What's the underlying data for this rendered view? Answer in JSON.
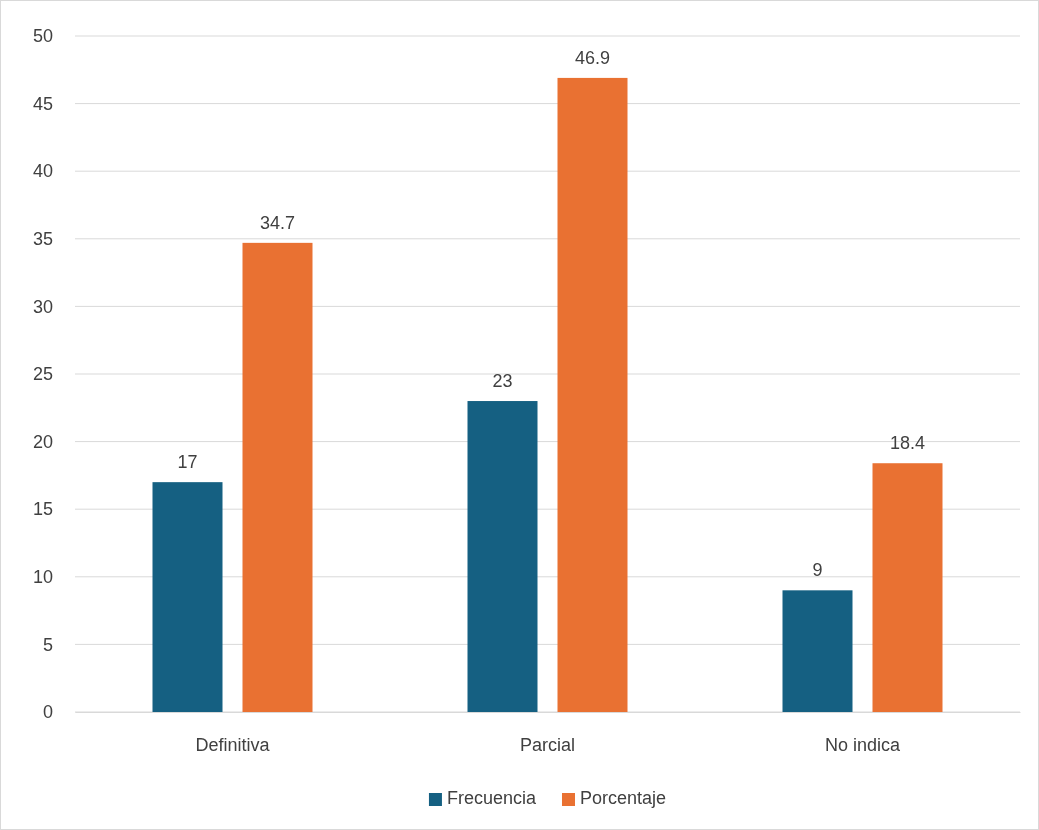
{
  "chart_data": {
    "type": "bar",
    "categories": [
      "Definitiva",
      "Parcial",
      "No indica"
    ],
    "series": [
      {
        "name": "Frecuencia",
        "color": "#156082",
        "values": [
          17,
          23,
          9
        ]
      },
      {
        "name": "Porcentaje",
        "color": "#e97132",
        "values": [
          34.7,
          46.9,
          18.4
        ]
      }
    ],
    "ylim": [
      0,
      50
    ],
    "yticks": [
      0,
      5,
      10,
      15,
      20,
      25,
      30,
      35,
      40,
      45,
      50
    ],
    "grid": "y",
    "legend": "bottom",
    "data_labels": true
  }
}
